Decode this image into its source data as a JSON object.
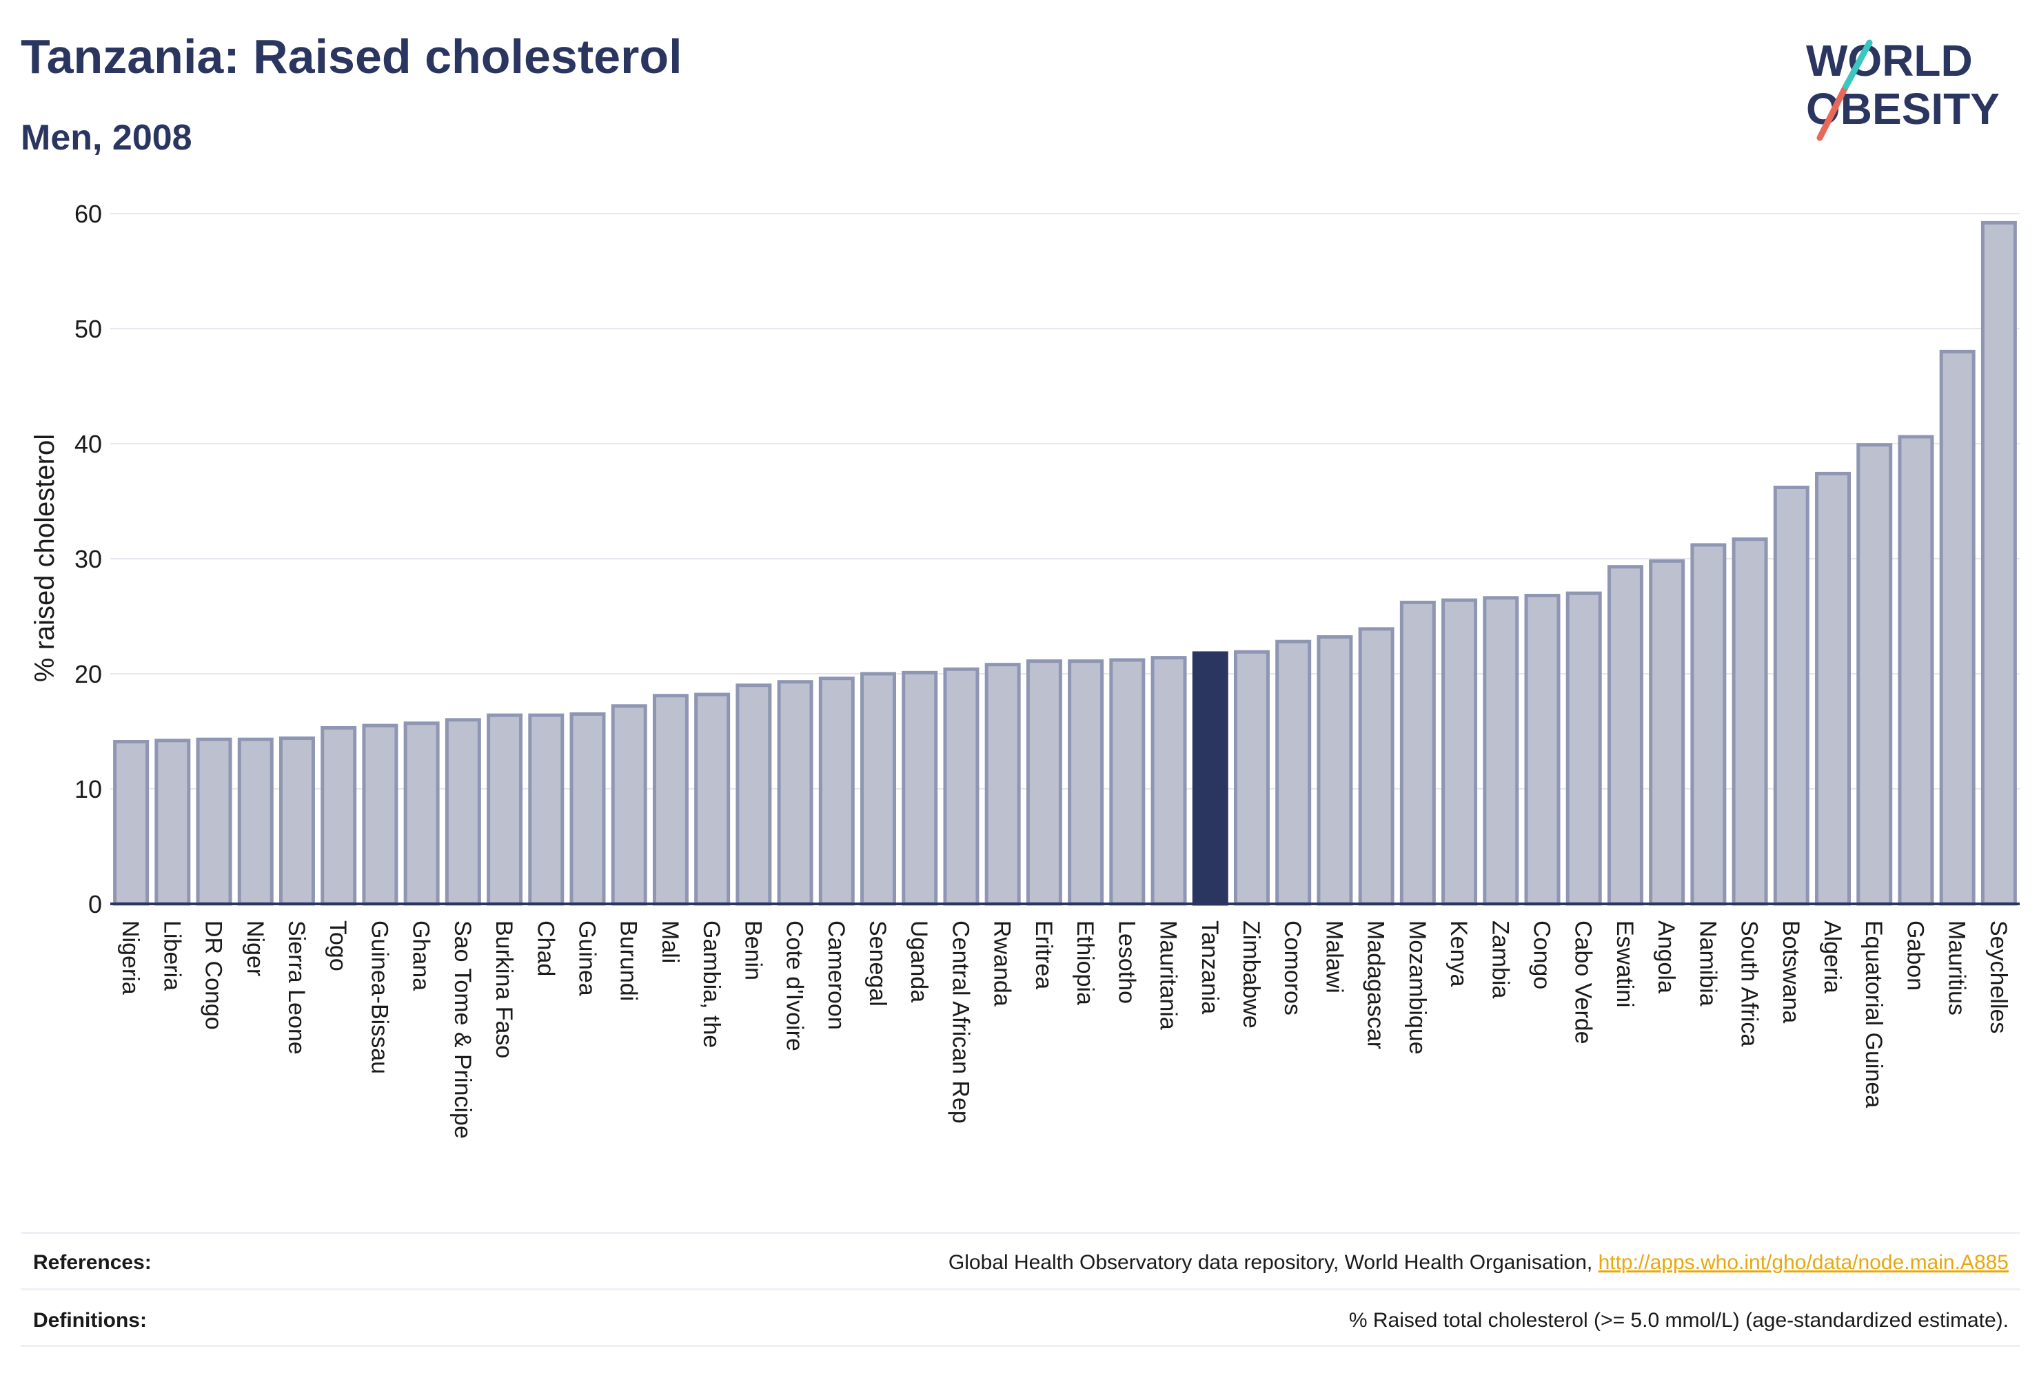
{
  "header": {
    "title": "Tanzania: Raised cholesterol",
    "subtitle": "Men, 2008"
  },
  "logo": {
    "line1": "WORLD",
    "line2": "OBESITY"
  },
  "colors": {
    "bar": "#bcc0cf",
    "bar_edge": "#8f96b3",
    "highlight": "#2a3560",
    "grid": "#e6e7ee",
    "text": "#2a3560",
    "link": "#e8a80c"
  },
  "chart_data": {
    "type": "bar",
    "ylabel": "% raised cholesterol",
    "ylim": [
      0,
      60
    ],
    "yticks": [
      0,
      10,
      20,
      30,
      40,
      50,
      60
    ],
    "highlight": "Tanzania",
    "categories": [
      "Nigeria",
      "Liberia",
      "DR Congo",
      "Niger",
      "Sierra Leone",
      "Togo",
      "Guinea-Bissau",
      "Ghana",
      "Sao Tome & Principe",
      "Burkina Faso",
      "Chad",
      "Guinea",
      "Burundi",
      "Mali",
      "Gambia, the",
      "Benin",
      "Cote d'Ivoire",
      "Cameroon",
      "Senegal",
      "Uganda",
      "Central African Rep",
      "Rwanda",
      "Eritrea",
      "Ethiopia",
      "Lesotho",
      "Mauritania",
      "Tanzania",
      "Zimbabwe",
      "Comoros",
      "Malawi",
      "Madagascar",
      "Mozambique",
      "Kenya",
      "Zambia",
      "Congo",
      "Cabo Verde",
      "Eswatini",
      "Angola",
      "Namibia",
      "South Africa",
      "Botswana",
      "Algeria",
      "Equatorial Guinea",
      "Gabon",
      "Mauritius",
      "Seychelles"
    ],
    "values": [
      14.1,
      14.2,
      14.3,
      14.3,
      14.4,
      15.3,
      15.5,
      15.7,
      16.0,
      16.4,
      16.4,
      16.5,
      17.2,
      18.1,
      18.2,
      19.0,
      19.3,
      19.6,
      20.0,
      20.1,
      20.4,
      20.8,
      21.1,
      21.1,
      21.2,
      21.4,
      21.8,
      21.9,
      22.8,
      23.2,
      23.9,
      26.2,
      26.4,
      26.6,
      26.8,
      27.0,
      29.3,
      29.8,
      31.2,
      31.7,
      36.2,
      37.4,
      39.9,
      40.6,
      48.0,
      59.2
    ]
  },
  "footer": {
    "references_label": "References:",
    "references_text": "Global Health Observatory data repository, World Health Organisation, ",
    "references_link": "http://apps.who.int/gho/data/node.main.A885",
    "definitions_label": "Definitions:",
    "definitions_text": "% Raised total cholesterol (>= 5.0 mmol/L) (age-standardized estimate)."
  }
}
